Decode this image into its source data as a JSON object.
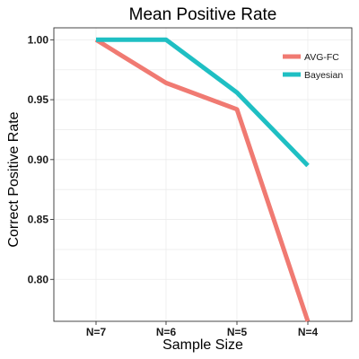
{
  "chart_data": {
    "type": "line",
    "title": "Mean Positive Rate",
    "xlabel": "Sample Size",
    "ylabel": "Correct Positive Rate",
    "categories": [
      "N=7",
      "N=6",
      "N=5",
      "N=4"
    ],
    "ylim": [
      0.765,
      1.01
    ],
    "yticks": [
      0.8,
      0.85,
      0.9,
      0.95,
      1.0
    ],
    "ytick_labels": [
      "0.80",
      "0.85",
      "0.90",
      "0.95",
      "1.00"
    ],
    "grid": true,
    "legend_position": "top-right",
    "series": [
      {
        "name": "AVG-FC",
        "color": "#F07A72",
        "values": [
          1.0,
          0.964,
          0.942,
          0.765
        ]
      },
      {
        "name": "Bayesian",
        "color": "#1FBFC3",
        "values": [
          1.0,
          1.0,
          0.956,
          0.895
        ]
      }
    ]
  }
}
